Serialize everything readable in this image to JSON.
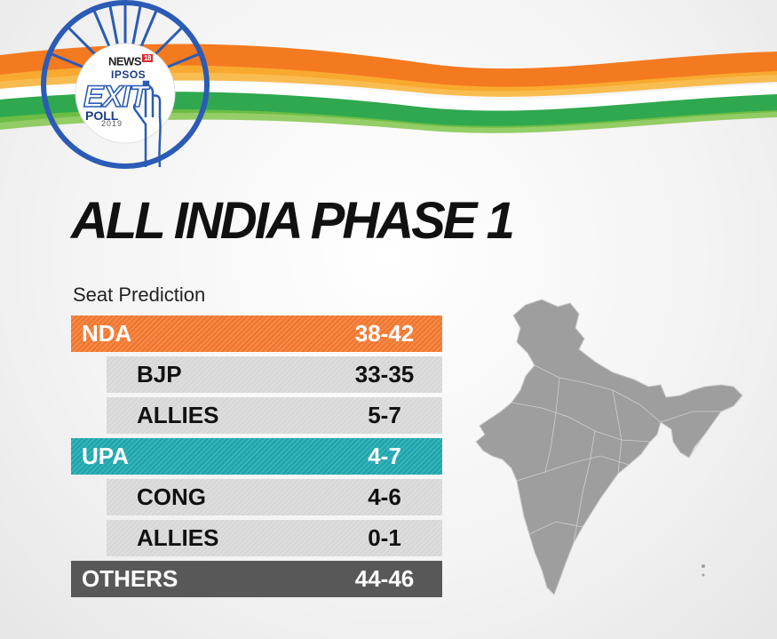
{
  "colors": {
    "saffron": "#f47a20",
    "green": "#2fa84f",
    "nda": "#f0742e",
    "upa": "#1fa3aa",
    "others": "#585858",
    "sub_row": "#d9d9d9"
  },
  "logo": {
    "brand": "NEWS",
    "brand_number": "18",
    "partner": "IPSOS",
    "exit_text": "EXIT",
    "poll_text": "POLL",
    "year": "2019"
  },
  "title": "ALL INDIA PHASE 1",
  "subtitle": "Seat Prediction",
  "rows": [
    {
      "label": "NDA",
      "value": "38-42",
      "kind": "main"
    },
    {
      "label": "BJP",
      "value": "33-35",
      "kind": "sub"
    },
    {
      "label": "ALLIES",
      "value": "5-7",
      "kind": "sub"
    },
    {
      "label": "UPA",
      "value": "4-7",
      "kind": "main"
    },
    {
      "label": "CONG",
      "value": "4-6",
      "kind": "sub"
    },
    {
      "label": "ALLIES",
      "value": "0-1",
      "kind": "sub"
    },
    {
      "label": "OTHERS",
      "value": "44-46",
      "kind": "main"
    }
  ],
  "icons": {
    "logo": "ashoka-chakra-logo-icon",
    "hand": "voting-finger-icon",
    "map": "india-map-icon"
  }
}
